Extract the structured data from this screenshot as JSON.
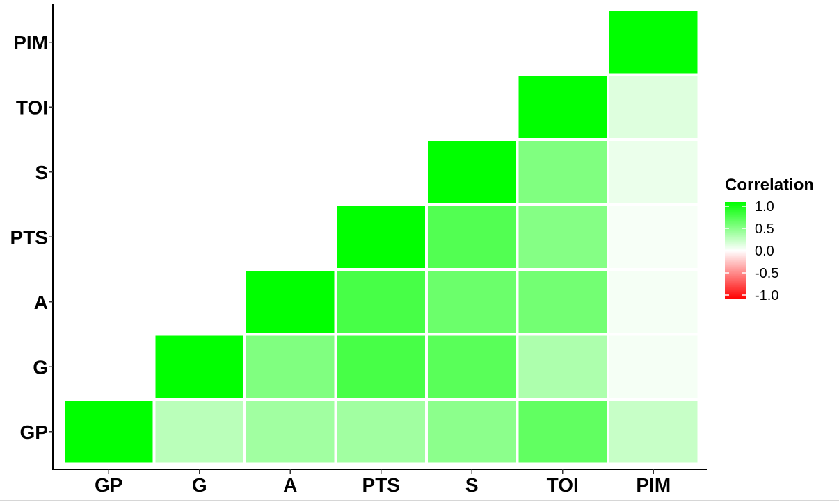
{
  "chart_data": {
    "type": "heatmap",
    "variables": [
      "GP",
      "G",
      "A",
      "PTS",
      "S",
      "TOI",
      "PIM"
    ],
    "cells": [
      {
        "x": "GP",
        "y": "GP",
        "value": 1.0
      },
      {
        "x": "G",
        "y": "GP",
        "value": 0.27
      },
      {
        "x": "A",
        "y": "GP",
        "value": 0.37
      },
      {
        "x": "PTS",
        "y": "GP",
        "value": 0.37
      },
      {
        "x": "S",
        "y": "GP",
        "value": 0.45
      },
      {
        "x": "TOI",
        "y": "GP",
        "value": 0.62
      },
      {
        "x": "PIM",
        "y": "GP",
        "value": 0.22
      },
      {
        "x": "G",
        "y": "G",
        "value": 1.0
      },
      {
        "x": "A",
        "y": "G",
        "value": 0.5
      },
      {
        "x": "PTS",
        "y": "G",
        "value": 0.72
      },
      {
        "x": "S",
        "y": "G",
        "value": 0.65
      },
      {
        "x": "TOI",
        "y": "G",
        "value": 0.32
      },
      {
        "x": "PIM",
        "y": "G",
        "value": 0.04
      },
      {
        "x": "A",
        "y": "A",
        "value": 1.0
      },
      {
        "x": "PTS",
        "y": "A",
        "value": 0.72
      },
      {
        "x": "S",
        "y": "A",
        "value": 0.58
      },
      {
        "x": "TOI",
        "y": "A",
        "value": 0.55
      },
      {
        "x": "PIM",
        "y": "A",
        "value": 0.04
      },
      {
        "x": "PTS",
        "y": "PTS",
        "value": 1.0
      },
      {
        "x": "S",
        "y": "PTS",
        "value": 0.68
      },
      {
        "x": "TOI",
        "y": "PTS",
        "value": 0.48
      },
      {
        "x": "PIM",
        "y": "PTS",
        "value": 0.03
      },
      {
        "x": "S",
        "y": "S",
        "value": 1.0
      },
      {
        "x": "TOI",
        "y": "S",
        "value": 0.5
      },
      {
        "x": "PIM",
        "y": "S",
        "value": 0.08
      },
      {
        "x": "TOI",
        "y": "TOI",
        "value": 1.0
      },
      {
        "x": "PIM",
        "y": "TOI",
        "value": 0.13
      },
      {
        "x": "PIM",
        "y": "PIM",
        "value": 1.0
      }
    ],
    "legend": {
      "title": "Correlation",
      "position": "right",
      "ticks": [
        1.0,
        0.5,
        0.0,
        -0.5,
        -1.0
      ],
      "tick_labels": [
        "1.0",
        "0.5",
        "0.0",
        "-0.5",
        "-1.0"
      ]
    },
    "color_scale": {
      "low": "#ff0000",
      "mid": "#ffffff",
      "high": "#00ff00",
      "limits": [
        -1,
        1
      ]
    },
    "grid": false
  }
}
